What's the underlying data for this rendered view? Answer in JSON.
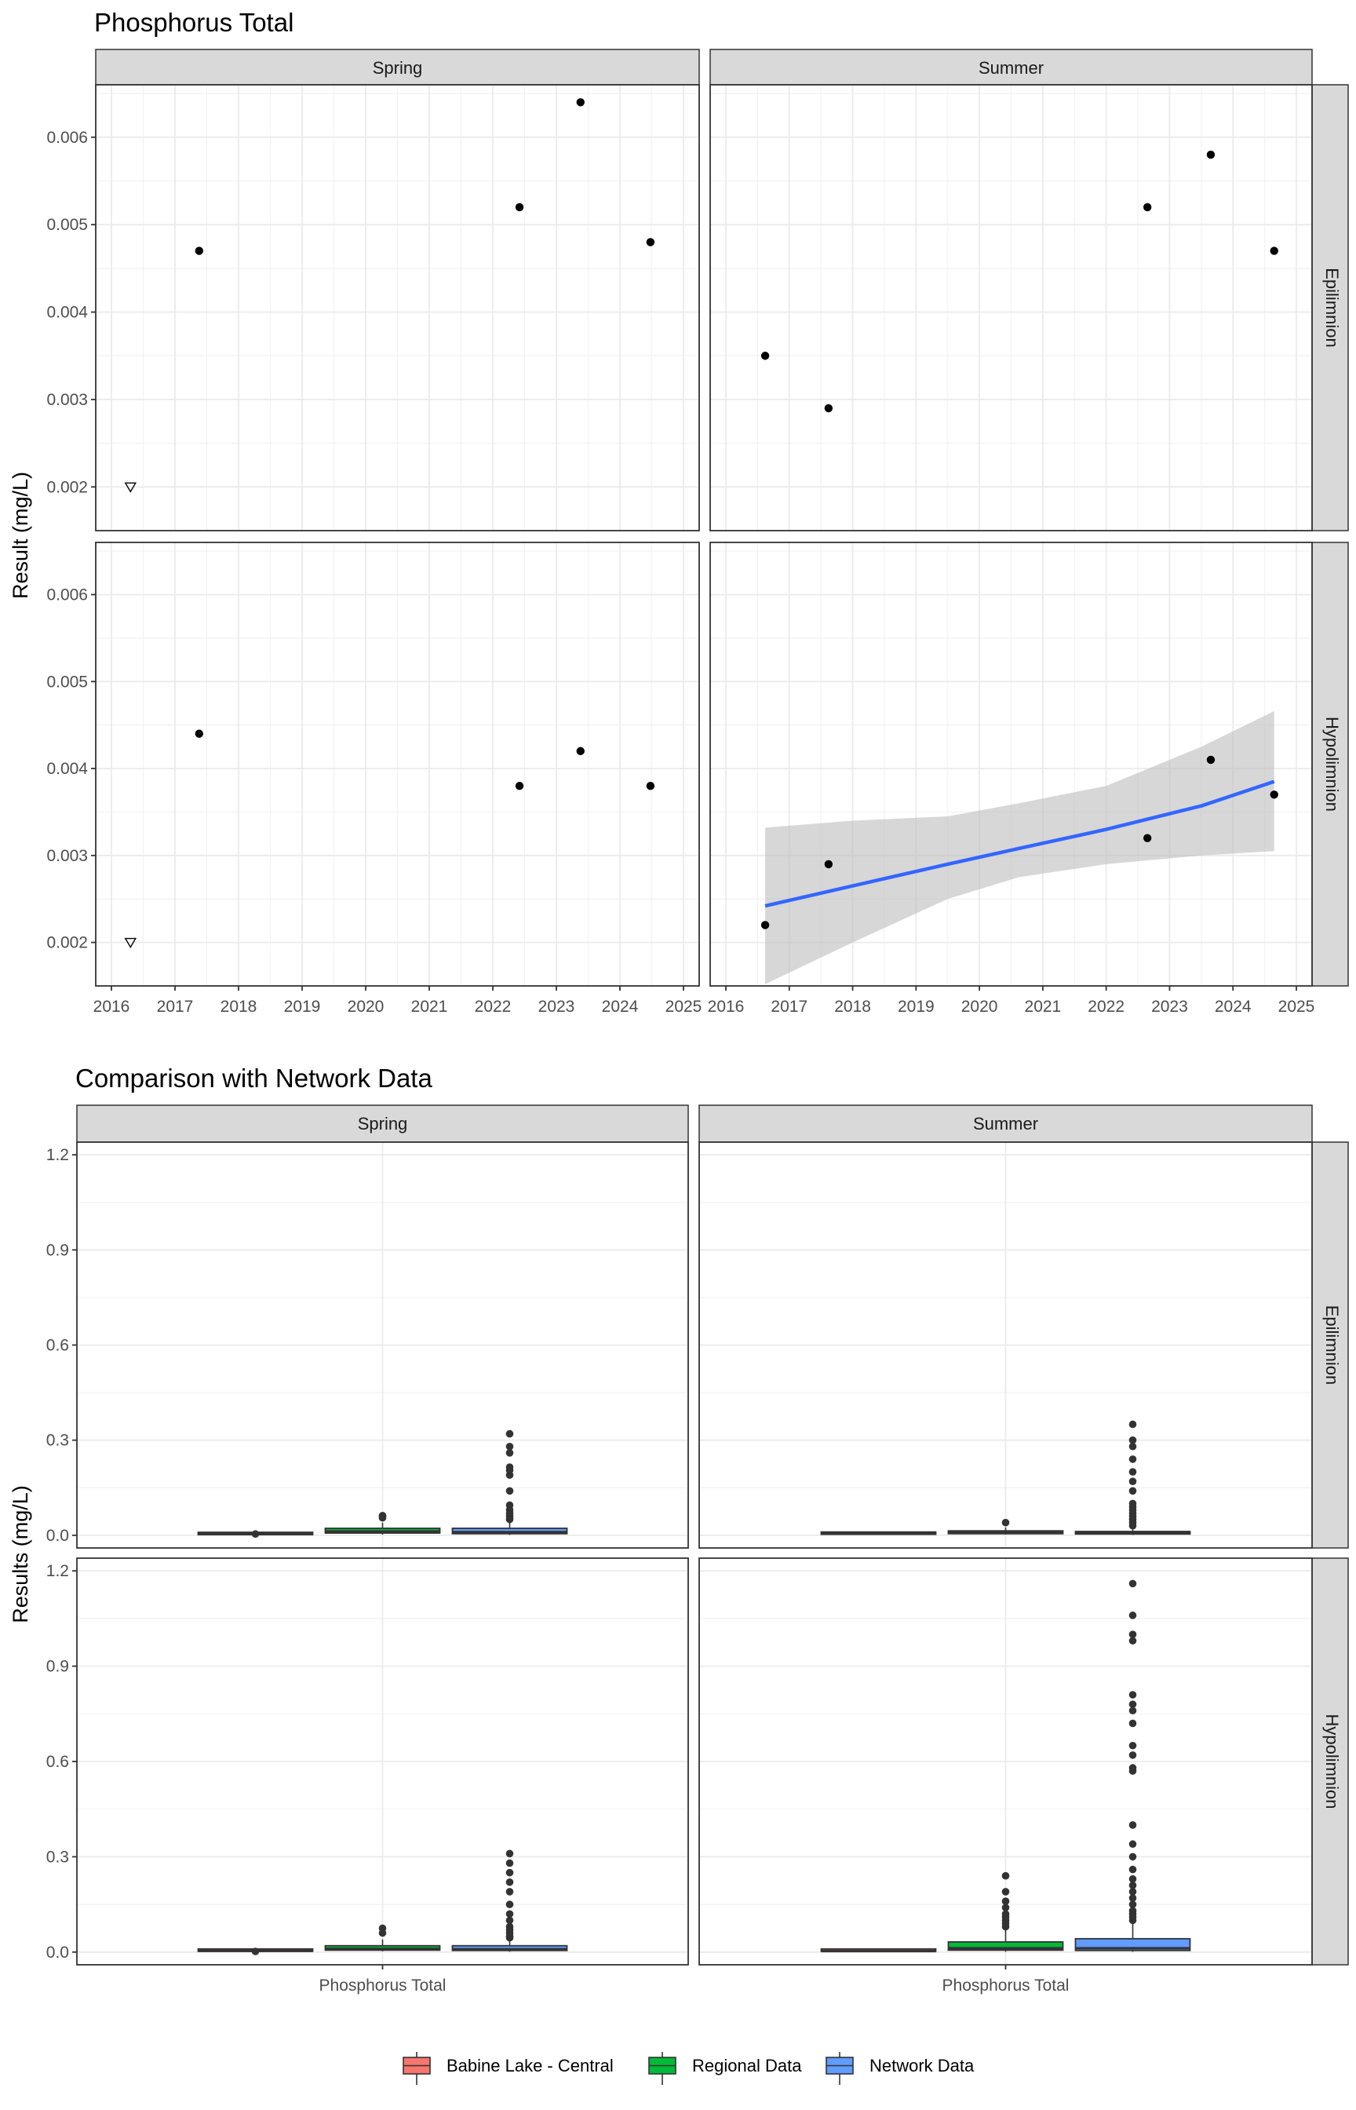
{
  "chart_data": [
    {
      "type": "scatter",
      "title": "Phosphorus Total",
      "ylabel": "Result (mg/L)",
      "xlabel": "",
      "xlim": [
        2016,
        2025
      ],
      "ylim": [
        0.0015,
        0.0066
      ],
      "x_ticks": [
        "2016",
        "2017",
        "2018",
        "2019",
        "2020",
        "2021",
        "2022",
        "2023",
        "2024",
        "2025"
      ],
      "y_ticks": [
        "0.002",
        "0.003",
        "0.004",
        "0.005",
        "0.006"
      ],
      "col_facets": [
        "Spring",
        "Summer"
      ],
      "row_facets": [
        "Epilimnion",
        "Hypolimnion"
      ],
      "grid": true,
      "panels": [
        {
          "season": "Spring",
          "depth": "Epilimnion",
          "points": [
            {
              "x": 2017.38,
              "y": 0.0047
            },
            {
              "x": 2022.42,
              "y": 0.0052
            },
            {
              "x": 2023.38,
              "y": 0.0064
            },
            {
              "x": 2024.48,
              "y": 0.0048
            }
          ],
          "below_detection": [
            {
              "x": 2016.3,
              "y": 0.002
            }
          ]
        },
        {
          "season": "Summer",
          "depth": "Epilimnion",
          "points": [
            {
              "x": 2016.62,
              "y": 0.0035
            },
            {
              "x": 2017.62,
              "y": 0.0029
            },
            {
              "x": 2022.65,
              "y": 0.0052
            },
            {
              "x": 2023.65,
              "y": 0.0058
            },
            {
              "x": 2024.65,
              "y": 0.0047
            }
          ],
          "below_detection": []
        },
        {
          "season": "Spring",
          "depth": "Hypolimnion",
          "points": [
            {
              "x": 2017.38,
              "y": 0.0044
            },
            {
              "x": 2022.42,
              "y": 0.0038
            },
            {
              "x": 2023.38,
              "y": 0.0042
            },
            {
              "x": 2024.48,
              "y": 0.0038
            }
          ],
          "below_detection": [
            {
              "x": 2016.3,
              "y": 0.002
            }
          ]
        },
        {
          "season": "Summer",
          "depth": "Hypolimnion",
          "points": [
            {
              "x": 2016.62,
              "y": 0.0022
            },
            {
              "x": 2017.62,
              "y": 0.0029
            },
            {
              "x": 2022.65,
              "y": 0.0032
            },
            {
              "x": 2023.65,
              "y": 0.0041
            },
            {
              "x": 2024.65,
              "y": 0.0037
            }
          ],
          "below_detection": [],
          "trend": {
            "line_color": "#3366ff",
            "band_color": "#bdbdbd",
            "points": [
              {
                "x": 2016.62,
                "y": 0.00242,
                "lo": 0.00152,
                "hi": 0.00332
              },
              {
                "x": 2018.0,
                "y": 0.00265,
                "lo": 0.002,
                "hi": 0.0034
              },
              {
                "x": 2019.5,
                "y": 0.0029,
                "lo": 0.0025,
                "hi": 0.00345
              },
              {
                "x": 2020.62,
                "y": 0.00308,
                "lo": 0.00275,
                "hi": 0.0036
              },
              {
                "x": 2022.0,
                "y": 0.0033,
                "lo": 0.0029,
                "hi": 0.0038
              },
              {
                "x": 2023.5,
                "y": 0.00357,
                "lo": 0.003,
                "hi": 0.00425
              },
              {
                "x": 2024.65,
                "y": 0.00385,
                "lo": 0.00305,
                "hi": 0.00466
              }
            ]
          }
        }
      ]
    },
    {
      "type": "box",
      "title": "Comparison with Network Data",
      "ylabel": "Results (mg/L)",
      "xlabel": "",
      "categories": [
        "Phosphorus Total"
      ],
      "ylim": [
        -0.04,
        1.24
      ],
      "y_ticks": [
        "0.0",
        "0.3",
        "0.6",
        "0.9",
        "1.2"
      ],
      "col_facets": [
        "Spring",
        "Summer"
      ],
      "row_facets": [
        "Epilimnion",
        "Hypolimnion"
      ],
      "grid": true,
      "legend_position": "bottom",
      "legend": [
        {
          "label": "Babine Lake - Central",
          "color": "#f8766d"
        },
        {
          "label": "Regional Data",
          "color": "#00ba38"
        },
        {
          "label": "Network Data",
          "color": "#619cff"
        }
      ],
      "panels": [
        {
          "season": "Spring",
          "depth": "Epilimnion",
          "boxes": [
            {
              "series": "Babine Lake - Central",
              "q1": 0.002,
              "median": 0.0045,
              "q3": 0.0055,
              "whisker_low": 0.002,
              "whisker_high": 0.0064,
              "outliers": [
                0.004
              ]
            },
            {
              "series": "Regional Data",
              "q1": 0.007,
              "median": 0.012,
              "q3": 0.022,
              "whisker_low": 0.002,
              "whisker_high": 0.04,
              "outliers": [
                0.055,
                0.06,
                0.062
              ]
            },
            {
              "series": "Network Data",
              "q1": 0.005,
              "median": 0.01,
              "q3": 0.022,
              "whisker_low": 0.001,
              "whisker_high": 0.045,
              "outliers": [
                0.05,
                0.06,
                0.07,
                0.08,
                0.095,
                0.14,
                0.19,
                0.205,
                0.215,
                0.26,
                0.28,
                0.32
              ]
            }
          ]
        },
        {
          "season": "Summer",
          "depth": "Epilimnion",
          "boxes": [
            {
              "series": "Babine Lake - Central",
              "q1": 0.003,
              "median": 0.0047,
              "q3": 0.0052,
              "whisker_low": 0.0029,
              "whisker_high": 0.0058,
              "outliers": []
            },
            {
              "series": "Regional Data",
              "q1": 0.005,
              "median": 0.008,
              "q3": 0.014,
              "whisker_low": 0.002,
              "whisker_high": 0.025,
              "outliers": [
                0.04
              ]
            },
            {
              "series": "Network Data",
              "q1": 0.004,
              "median": 0.007,
              "q3": 0.012,
              "whisker_low": 0.001,
              "whisker_high": 0.025,
              "outliers": [
                0.03,
                0.04,
                0.05,
                0.06,
                0.07,
                0.08,
                0.09,
                0.1,
                0.14,
                0.17,
                0.2,
                0.24,
                0.28,
                0.3,
                0.35
              ]
            }
          ]
        },
        {
          "season": "Spring",
          "depth": "Hypolimnion",
          "boxes": [
            {
              "series": "Babine Lake - Central",
              "q1": 0.0025,
              "median": 0.0038,
              "q3": 0.0042,
              "whisker_low": 0.002,
              "whisker_high": 0.0044,
              "outliers": [
                0.002
              ]
            },
            {
              "series": "Regional Data",
              "q1": 0.006,
              "median": 0.01,
              "q3": 0.02,
              "whisker_low": 0.002,
              "whisker_high": 0.04,
              "outliers": [
                0.06,
                0.075
              ]
            },
            {
              "series": "Network Data",
              "q1": 0.005,
              "median": 0.009,
              "q3": 0.02,
              "whisker_low": 0.001,
              "whisker_high": 0.04,
              "outliers": [
                0.045,
                0.05,
                0.06,
                0.07,
                0.08,
                0.1,
                0.12,
                0.15,
                0.19,
                0.22,
                0.25,
                0.28,
                0.31
              ]
            }
          ]
        },
        {
          "season": "Summer",
          "depth": "Hypolimnion",
          "boxes": [
            {
              "series": "Babine Lake - Central",
              "q1": 0.0025,
              "median": 0.0032,
              "q3": 0.0037,
              "whisker_low": 0.0022,
              "whisker_high": 0.0041,
              "outliers": []
            },
            {
              "series": "Regional Data",
              "q1": 0.006,
              "median": 0.012,
              "q3": 0.032,
              "whisker_low": 0.001,
              "whisker_high": 0.07,
              "outliers": [
                0.08,
                0.09,
                0.1,
                0.11,
                0.12,
                0.14,
                0.16,
                0.19,
                0.24
              ]
            },
            {
              "series": "Network Data",
              "q1": 0.005,
              "median": 0.012,
              "q3": 0.042,
              "whisker_low": 0.001,
              "whisker_high": 0.09,
              "outliers": [
                0.1,
                0.11,
                0.12,
                0.13,
                0.15,
                0.17,
                0.19,
                0.21,
                0.23,
                0.26,
                0.3,
                0.34,
                0.4,
                0.57,
                0.58,
                0.62,
                0.65,
                0.72,
                0.76,
                0.78,
                0.81,
                0.98,
                1.0,
                1.06,
                1.16
              ]
            }
          ]
        }
      ]
    }
  ]
}
